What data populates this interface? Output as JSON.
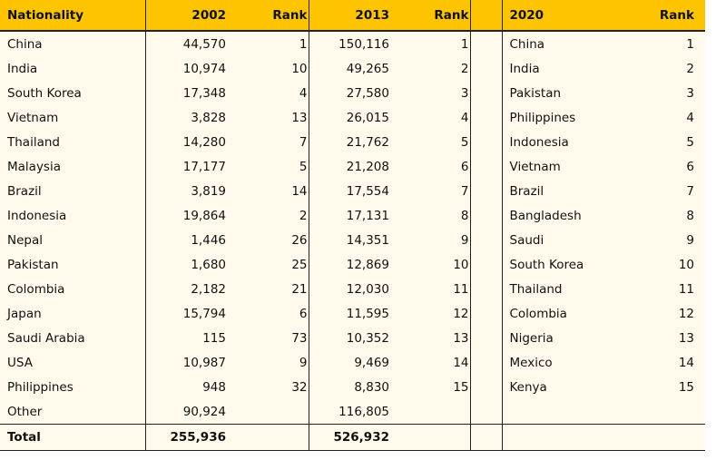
{
  "table": {
    "header": [
      "Nationality",
      "2002",
      "Rank",
      "2013",
      "Rank",
      "2020",
      "Rank"
    ],
    "rows": [
      [
        "China",
        "44,570",
        1,
        "150,116",
        1,
        "China",
        1
      ],
      [
        "India",
        "10,974",
        10,
        "49,265",
        2,
        "India",
        2
      ],
      [
        "South Korea",
        "17,348",
        4,
        "27,580",
        3,
        "Pakistan",
        3
      ],
      [
        "Vietnam",
        "3,828",
        13,
        "26,015",
        4,
        "Philippines",
        4
      ],
      [
        "Thailand",
        "14,280",
        7,
        "21,762",
        5,
        "Indonesia",
        5
      ],
      [
        "Malaysia",
        "17,177",
        5,
        "21,208",
        6,
        "Vietnam",
        6
      ],
      [
        "Brazil",
        "3,819",
        14,
        "17,554",
        7,
        "Brazil",
        7
      ],
      [
        "Indonesia",
        "19,864",
        2,
        "17,131",
        8,
        "Bangladesh",
        8
      ],
      [
        "Nepal",
        "1,446",
        26,
        "14,351",
        9,
        "Saudi",
        9
      ],
      [
        "Pakistan",
        "1,680",
        25,
        "12,869",
        10,
        "South Korea",
        10
      ],
      [
        "Colombia",
        "2,182",
        21,
        "12,030",
        11,
        "Thailand",
        11
      ],
      [
        "Japan",
        "15,794",
        6,
        "11,595",
        12,
        "Colombia",
        12
      ],
      [
        "Saudi Arabia",
        "115",
        73,
        "10,352",
        13,
        "Nigeria",
        13
      ],
      [
        "USA",
        "10,987",
        9,
        "9,469",
        14,
        "Mexico",
        14
      ],
      [
        "Philippines",
        "948",
        32,
        "8,830",
        15,
        "Kenya",
        15
      ],
      [
        "Other",
        "90,924",
        null,
        "116,805",
        null,
        null,
        null
      ]
    ],
    "total": [
      "Total",
      "255,936",
      "526,932"
    ]
  }
}
